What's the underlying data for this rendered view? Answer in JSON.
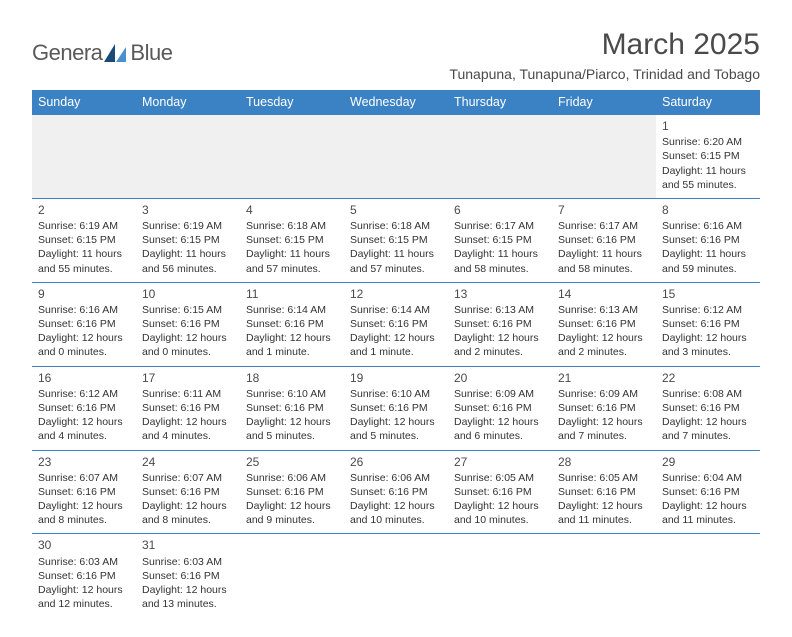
{
  "logo": {
    "text_left": "Genera",
    "text_right": "Blue"
  },
  "title": "March 2025",
  "location": "Tunapuna, Tunapuna/Piarco, Trinidad and Tobago",
  "colors": {
    "header_bg": "#3b82c4",
    "header_text": "#ffffff",
    "border": "#3b82c4",
    "logo_dark": "#1a4a78",
    "logo_light": "#4a90d0",
    "text": "#333333",
    "muted_bg": "#f0f0f0"
  },
  "day_headers": [
    "Sunday",
    "Monday",
    "Tuesday",
    "Wednesday",
    "Thursday",
    "Friday",
    "Saturday"
  ],
  "weeks": [
    [
      null,
      null,
      null,
      null,
      null,
      null,
      {
        "n": "1",
        "sunrise": "Sunrise: 6:20 AM",
        "sunset": "Sunset: 6:15 PM",
        "daylight": "Daylight: 11 hours and 55 minutes."
      }
    ],
    [
      {
        "n": "2",
        "sunrise": "Sunrise: 6:19 AM",
        "sunset": "Sunset: 6:15 PM",
        "daylight": "Daylight: 11 hours and 55 minutes."
      },
      {
        "n": "3",
        "sunrise": "Sunrise: 6:19 AM",
        "sunset": "Sunset: 6:15 PM",
        "daylight": "Daylight: 11 hours and 56 minutes."
      },
      {
        "n": "4",
        "sunrise": "Sunrise: 6:18 AM",
        "sunset": "Sunset: 6:15 PM",
        "daylight": "Daylight: 11 hours and 57 minutes."
      },
      {
        "n": "5",
        "sunrise": "Sunrise: 6:18 AM",
        "sunset": "Sunset: 6:15 PM",
        "daylight": "Daylight: 11 hours and 57 minutes."
      },
      {
        "n": "6",
        "sunrise": "Sunrise: 6:17 AM",
        "sunset": "Sunset: 6:15 PM",
        "daylight": "Daylight: 11 hours and 58 minutes."
      },
      {
        "n": "7",
        "sunrise": "Sunrise: 6:17 AM",
        "sunset": "Sunset: 6:16 PM",
        "daylight": "Daylight: 11 hours and 58 minutes."
      },
      {
        "n": "8",
        "sunrise": "Sunrise: 6:16 AM",
        "sunset": "Sunset: 6:16 PM",
        "daylight": "Daylight: 11 hours and 59 minutes."
      }
    ],
    [
      {
        "n": "9",
        "sunrise": "Sunrise: 6:16 AM",
        "sunset": "Sunset: 6:16 PM",
        "daylight": "Daylight: 12 hours and 0 minutes."
      },
      {
        "n": "10",
        "sunrise": "Sunrise: 6:15 AM",
        "sunset": "Sunset: 6:16 PM",
        "daylight": "Daylight: 12 hours and 0 minutes."
      },
      {
        "n": "11",
        "sunrise": "Sunrise: 6:14 AM",
        "sunset": "Sunset: 6:16 PM",
        "daylight": "Daylight: 12 hours and 1 minute."
      },
      {
        "n": "12",
        "sunrise": "Sunrise: 6:14 AM",
        "sunset": "Sunset: 6:16 PM",
        "daylight": "Daylight: 12 hours and 1 minute."
      },
      {
        "n": "13",
        "sunrise": "Sunrise: 6:13 AM",
        "sunset": "Sunset: 6:16 PM",
        "daylight": "Daylight: 12 hours and 2 minutes."
      },
      {
        "n": "14",
        "sunrise": "Sunrise: 6:13 AM",
        "sunset": "Sunset: 6:16 PM",
        "daylight": "Daylight: 12 hours and 2 minutes."
      },
      {
        "n": "15",
        "sunrise": "Sunrise: 6:12 AM",
        "sunset": "Sunset: 6:16 PM",
        "daylight": "Daylight: 12 hours and 3 minutes."
      }
    ],
    [
      {
        "n": "16",
        "sunrise": "Sunrise: 6:12 AM",
        "sunset": "Sunset: 6:16 PM",
        "daylight": "Daylight: 12 hours and 4 minutes."
      },
      {
        "n": "17",
        "sunrise": "Sunrise: 6:11 AM",
        "sunset": "Sunset: 6:16 PM",
        "daylight": "Daylight: 12 hours and 4 minutes."
      },
      {
        "n": "18",
        "sunrise": "Sunrise: 6:10 AM",
        "sunset": "Sunset: 6:16 PM",
        "daylight": "Daylight: 12 hours and 5 minutes."
      },
      {
        "n": "19",
        "sunrise": "Sunrise: 6:10 AM",
        "sunset": "Sunset: 6:16 PM",
        "daylight": "Daylight: 12 hours and 5 minutes."
      },
      {
        "n": "20",
        "sunrise": "Sunrise: 6:09 AM",
        "sunset": "Sunset: 6:16 PM",
        "daylight": "Daylight: 12 hours and 6 minutes."
      },
      {
        "n": "21",
        "sunrise": "Sunrise: 6:09 AM",
        "sunset": "Sunset: 6:16 PM",
        "daylight": "Daylight: 12 hours and 7 minutes."
      },
      {
        "n": "22",
        "sunrise": "Sunrise: 6:08 AM",
        "sunset": "Sunset: 6:16 PM",
        "daylight": "Daylight: 12 hours and 7 minutes."
      }
    ],
    [
      {
        "n": "23",
        "sunrise": "Sunrise: 6:07 AM",
        "sunset": "Sunset: 6:16 PM",
        "daylight": "Daylight: 12 hours and 8 minutes."
      },
      {
        "n": "24",
        "sunrise": "Sunrise: 6:07 AM",
        "sunset": "Sunset: 6:16 PM",
        "daylight": "Daylight: 12 hours and 8 minutes."
      },
      {
        "n": "25",
        "sunrise": "Sunrise: 6:06 AM",
        "sunset": "Sunset: 6:16 PM",
        "daylight": "Daylight: 12 hours and 9 minutes."
      },
      {
        "n": "26",
        "sunrise": "Sunrise: 6:06 AM",
        "sunset": "Sunset: 6:16 PM",
        "daylight": "Daylight: 12 hours and 10 minutes."
      },
      {
        "n": "27",
        "sunrise": "Sunrise: 6:05 AM",
        "sunset": "Sunset: 6:16 PM",
        "daylight": "Daylight: 12 hours and 10 minutes."
      },
      {
        "n": "28",
        "sunrise": "Sunrise: 6:05 AM",
        "sunset": "Sunset: 6:16 PM",
        "daylight": "Daylight: 12 hours and 11 minutes."
      },
      {
        "n": "29",
        "sunrise": "Sunrise: 6:04 AM",
        "sunset": "Sunset: 6:16 PM",
        "daylight": "Daylight: 12 hours and 11 minutes."
      }
    ],
    [
      {
        "n": "30",
        "sunrise": "Sunrise: 6:03 AM",
        "sunset": "Sunset: 6:16 PM",
        "daylight": "Daylight: 12 hours and 12 minutes."
      },
      {
        "n": "31",
        "sunrise": "Sunrise: 6:03 AM",
        "sunset": "Sunset: 6:16 PM",
        "daylight": "Daylight: 12 hours and 13 minutes."
      },
      null,
      null,
      null,
      null,
      null
    ]
  ]
}
